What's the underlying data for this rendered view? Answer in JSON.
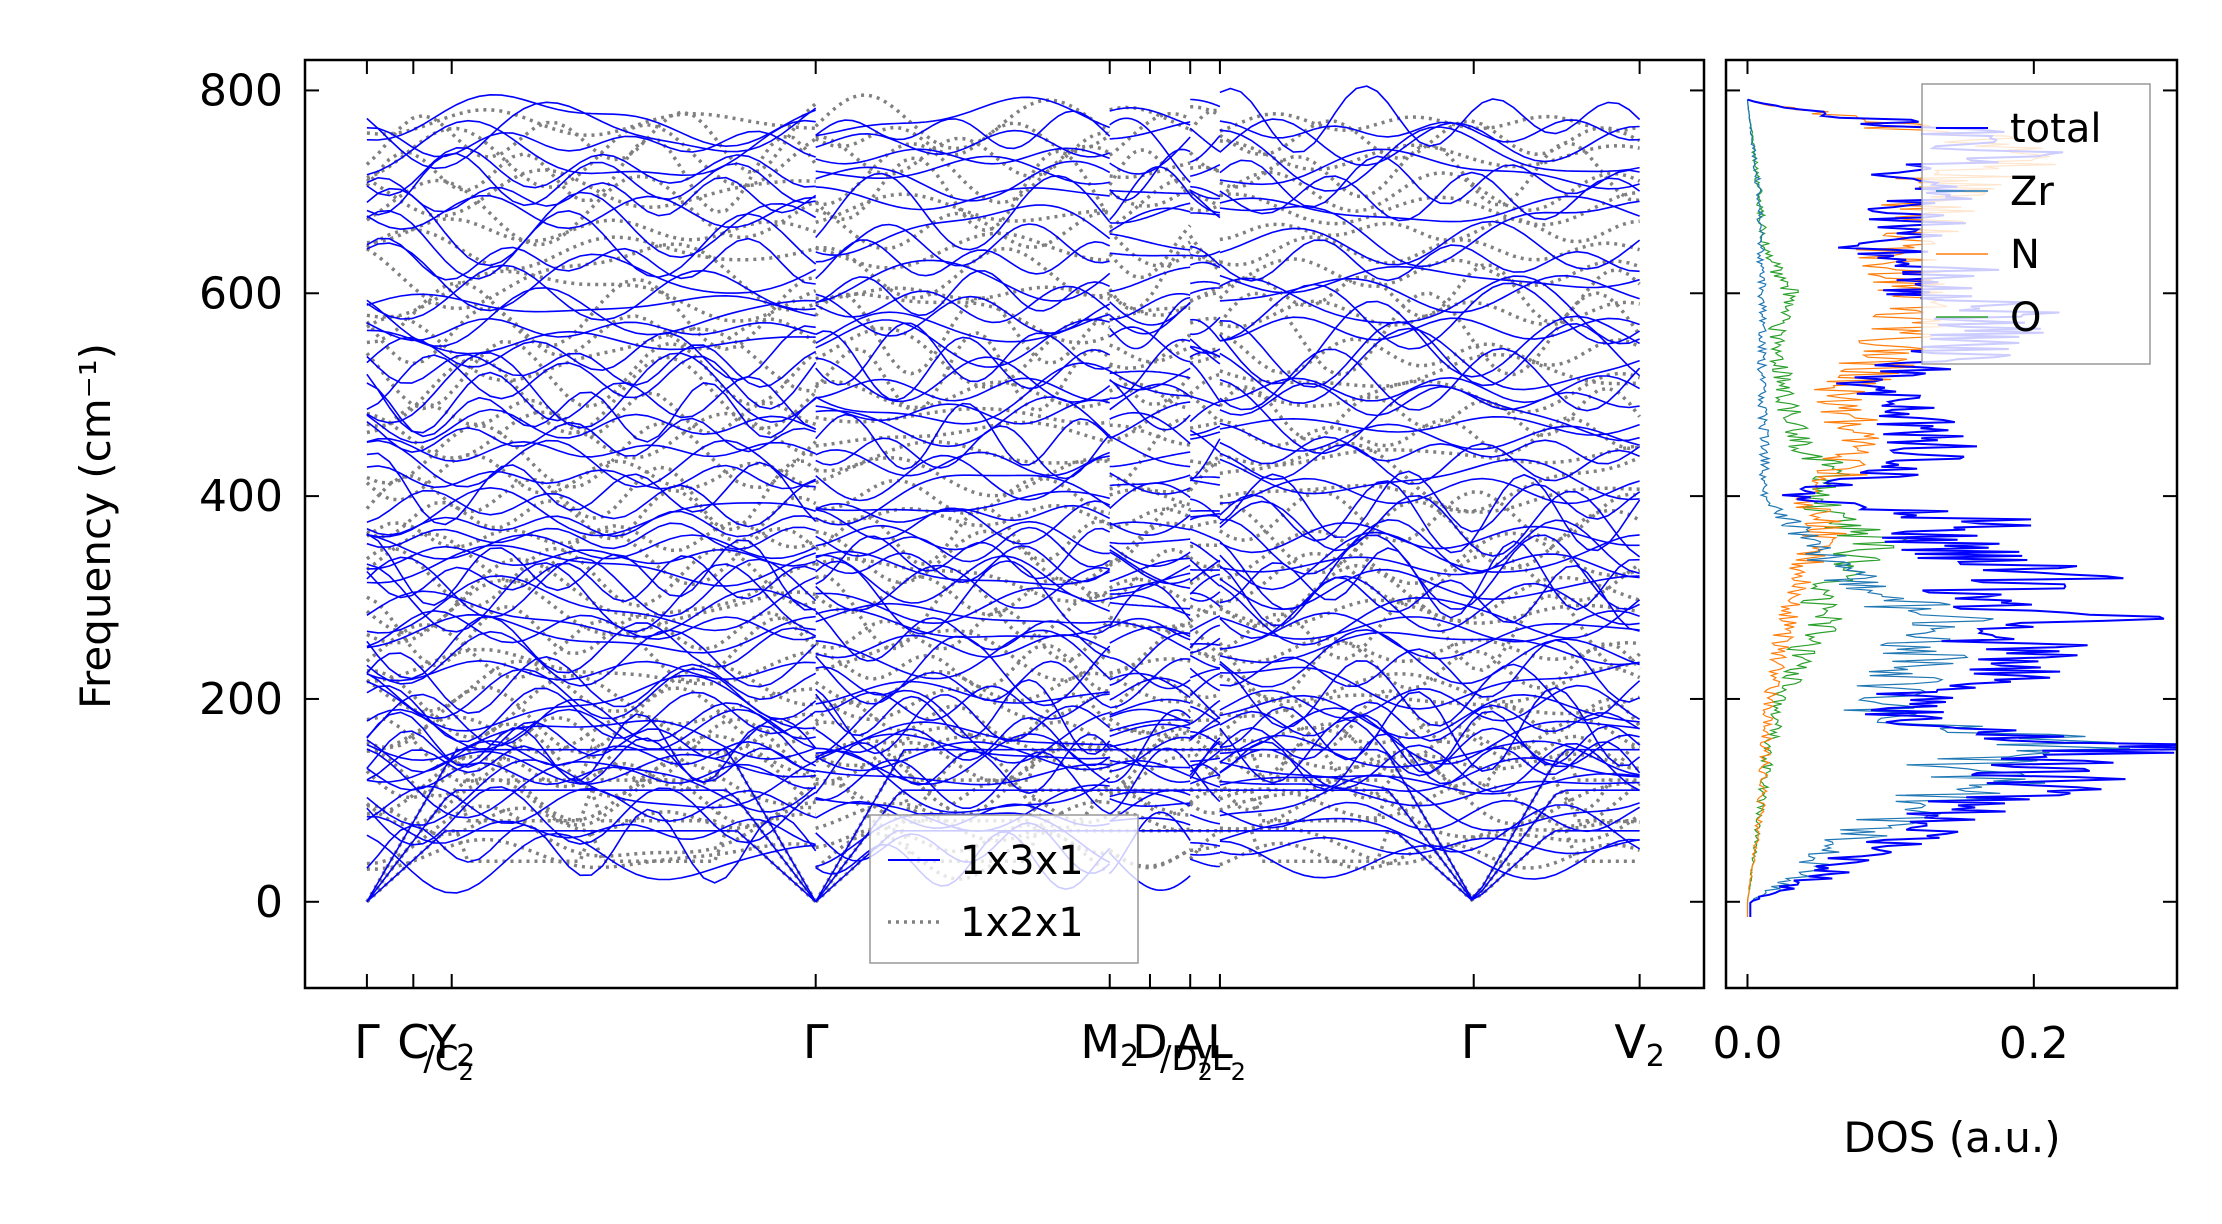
{
  "chart_data": [
    {
      "type": "line",
      "panel": "phonon-band-structure",
      "ylabel": "Frequency (cm⁻¹)",
      "ylim": [
        -85,
        830
      ],
      "yticks": [
        0,
        200,
        400,
        600,
        800
      ],
      "x_points": [
        0,
        0.75,
        1.37,
        7.25,
        12.0,
        12.65,
        13.3,
        13.78,
        17.88,
        20.56
      ],
      "xlim": [
        -1.0,
        21.6
      ],
      "segments_x": [
        [
          0,
          7.25
        ],
        [
          7.25,
          12.0
        ],
        [
          12.0,
          13.3
        ],
        [
          13.3,
          13.78
        ],
        [
          13.78,
          20.56
        ]
      ],
      "high_symmetry_labels": [
        {
          "x": 0,
          "main": "Γ",
          "sub": ""
        },
        {
          "x": 0.75,
          "main": "C",
          "sub": ""
        },
        {
          "x": 0.75,
          "main": "/C",
          "sub": "2"
        },
        {
          "x": 1.37,
          "main": "Y",
          "sub": "2"
        },
        {
          "x": 7.25,
          "main": "Γ",
          "sub": ""
        },
        {
          "x": 12.0,
          "main": "M",
          "sub": "2"
        },
        {
          "x": 12.65,
          "main": "D",
          "sub": ""
        },
        {
          "x": 12.65,
          "main": "/D",
          "sub": "2"
        },
        {
          "x": 13.3,
          "main": "A",
          "sub": ""
        },
        {
          "x": 13.3,
          "main": "/L",
          "sub": "2"
        },
        {
          "x": 13.78,
          "main": "L",
          "sub": ""
        },
        {
          "x": 17.88,
          "main": "Γ",
          "sub": ""
        },
        {
          "x": 20.56,
          "main": "V",
          "sub": "2"
        }
      ],
      "series": [
        {
          "name": "1x3x1",
          "color": "#0000ff",
          "style": "solid",
          "gamma_frequencies": [
            0,
            0,
            0,
            40,
            55,
            70,
            85,
            95,
            110,
            118,
            125,
            132,
            138,
            145,
            150,
            158,
            163,
            170,
            178,
            185,
            195,
            205,
            215,
            228,
            240,
            252,
            262,
            270,
            282,
            292,
            300,
            310,
            318,
            325,
            332,
            340,
            350,
            360,
            372,
            382,
            392,
            405,
            418,
            432,
            445,
            458,
            470,
            482,
            495,
            505,
            515,
            528,
            540,
            552,
            565,
            578,
            588,
            600,
            615,
            632,
            648,
            665,
            680,
            695,
            710,
            722,
            735,
            748,
            760,
            772
          ]
        },
        {
          "name": "1x2x1",
          "color": "#808080",
          "style": "dotted",
          "gamma_frequencies": [
            0,
            0,
            0,
            45,
            62,
            80,
            98,
            112,
            125,
            138,
            150,
            165,
            180,
            195,
            212,
            230,
            248,
            265,
            285,
            302,
            320,
            340,
            360,
            380,
            400,
            420,
            440,
            460,
            480,
            500,
            520,
            540,
            560,
            580,
            600,
            620,
            642,
            662,
            682,
            700,
            718,
            735,
            752,
            768
          ]
        }
      ],
      "legend": {
        "position": "lower-center",
        "entries": [
          "1x3x1",
          "1x2x1"
        ]
      }
    },
    {
      "type": "line",
      "panel": "density-of-states",
      "xlabel": "DOS (a.u.)",
      "xlim": [
        -0.015,
        0.3
      ],
      "xticks": [
        0.0,
        0.2
      ],
      "xtick_labels": [
        "0.0",
        "0.2"
      ],
      "ylim": [
        -85,
        830
      ],
      "series": [
        {
          "name": "total",
          "color": "#0000ff",
          "peaks": [
            [
              0,
              0.002
            ],
            [
              25,
              0.05
            ],
            [
              55,
              0.09
            ],
            [
              70,
              0.12
            ],
            [
              95,
              0.145
            ],
            [
              105,
              0.2
            ],
            [
              120,
              0.23
            ],
            [
              130,
              0.19
            ],
            [
              150,
              0.285
            ],
            [
              175,
              0.12
            ],
            [
              200,
              0.11
            ],
            [
              215,
              0.16
            ],
            [
              240,
              0.18
            ],
            [
              270,
              0.2
            ],
            [
              280,
              0.235
            ],
            [
              300,
              0.15
            ],
            [
              320,
              0.21
            ],
            [
              345,
              0.15
            ],
            [
              360,
              0.13
            ],
            [
              375,
              0.17
            ],
            [
              400,
              0.03
            ],
            [
              420,
              0.09
            ],
            [
              440,
              0.13
            ],
            [
              470,
              0.11
            ],
            [
              485,
              0.13
            ],
            [
              510,
              0.07
            ],
            [
              535,
              0.14
            ],
            [
              570,
              0.17
            ],
            [
              585,
              0.19
            ],
            [
              600,
              0.12
            ],
            [
              625,
              0.14
            ],
            [
              645,
              0.09
            ],
            [
              668,
              0.13
            ],
            [
              680,
              0.1
            ],
            [
              700,
              0.135
            ],
            [
              715,
              0.09
            ],
            [
              732,
              0.18
            ],
            [
              755,
              0.16
            ],
            [
              775,
              0.07
            ],
            [
              785,
              0.02
            ],
            [
              790,
              0.0
            ]
          ]
        },
        {
          "name": "Zr",
          "color": "#1f77b4",
          "peaks": [
            [
              0,
              0.002
            ],
            [
              30,
              0.04
            ],
            [
              60,
              0.07
            ],
            [
              95,
              0.12
            ],
            [
              120,
              0.18
            ],
            [
              135,
              0.13
            ],
            [
              150,
              0.255
            ],
            [
              180,
              0.09
            ],
            [
              210,
              0.1
            ],
            [
              240,
              0.12
            ],
            [
              280,
              0.135
            ],
            [
              310,
              0.08
            ],
            [
              360,
              0.04
            ],
            [
              400,
              0.012
            ],
            [
              450,
              0.012
            ],
            [
              500,
              0.01
            ],
            [
              600,
              0.01
            ],
            [
              700,
              0.008
            ],
            [
              790,
              0.0
            ]
          ]
        },
        {
          "name": "N",
          "color": "#ff7f0e",
          "peaks": [
            [
              0,
              0.0
            ],
            [
              100,
              0.01
            ],
            [
              200,
              0.015
            ],
            [
              260,
              0.025
            ],
            [
              300,
              0.03
            ],
            [
              340,
              0.045
            ],
            [
              380,
              0.06
            ],
            [
              400,
              0.03
            ],
            [
              420,
              0.065
            ],
            [
              450,
              0.07
            ],
            [
              470,
              0.075
            ],
            [
              500,
              0.06
            ],
            [
              520,
              0.085
            ],
            [
              560,
              0.105
            ],
            [
              580,
              0.12
            ],
            [
              600,
              0.11
            ],
            [
              640,
              0.1
            ],
            [
              668,
              0.12
            ],
            [
              700,
              0.13
            ],
            [
              730,
              0.17
            ],
            [
              755,
              0.15
            ],
            [
              775,
              0.06
            ],
            [
              790,
              0.0
            ]
          ]
        },
        {
          "name": "O",
          "color": "#2ca02c",
          "peaks": [
            [
              0,
              0.0
            ],
            [
              100,
              0.01
            ],
            [
              150,
              0.015
            ],
            [
              200,
              0.025
            ],
            [
              240,
              0.035
            ],
            [
              280,
              0.055
            ],
            [
              300,
              0.05
            ],
            [
              330,
              0.07
            ],
            [
              360,
              0.09
            ],
            [
              375,
              0.06
            ],
            [
              400,
              0.05
            ],
            [
              425,
              0.065
            ],
            [
              450,
              0.035
            ],
            [
              480,
              0.03
            ],
            [
              510,
              0.025
            ],
            [
              560,
              0.02
            ],
            [
              600,
              0.03
            ],
            [
              650,
              0.012
            ],
            [
              700,
              0.008
            ],
            [
              790,
              0.0
            ]
          ]
        }
      ],
      "legend": {
        "position": "top-right",
        "entries": [
          "total",
          "Zr",
          "N",
          "O"
        ]
      }
    }
  ]
}
